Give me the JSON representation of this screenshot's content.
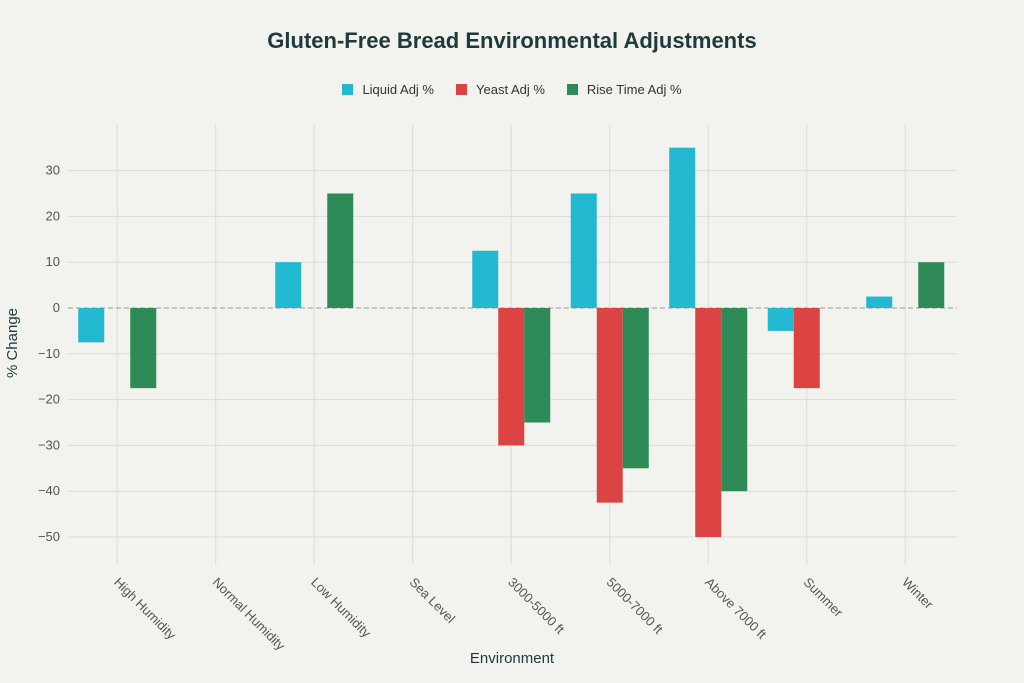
{
  "chart_data": {
    "type": "bar",
    "title": "Gluten-Free Bread Environmental Adjustments",
    "xlabel": "Environment",
    "ylabel": "% Change",
    "categories": [
      "High Humidity",
      "Normal Humidity",
      "Low Humidity",
      "Sea Level",
      "3000-5000 ft",
      "5000-7000 ft",
      "Above 7000 ft",
      "Summer",
      "Winter"
    ],
    "series": [
      {
        "name": "Liquid Adj %",
        "color": "#22b8cf",
        "values": [
          -7.5,
          0,
          10,
          0,
          12.5,
          25,
          35,
          -5,
          2.5
        ]
      },
      {
        "name": "Yeast Adj %",
        "color": "#dc4444",
        "values": [
          0,
          0,
          0,
          0,
          -30,
          -42.5,
          -50,
          -17.5,
          0
        ]
      },
      {
        "name": "Rise Time Adj %",
        "color": "#2e8b57",
        "values": [
          -17.5,
          0,
          25,
          0,
          -25,
          -35,
          -40,
          0,
          10
        ]
      }
    ],
    "y_ticks": [
      30,
      20,
      10,
      0,
      -10,
      -20,
      -30,
      -40,
      -50
    ],
    "ylim": [
      -55,
      40
    ],
    "grid": true,
    "legend_position": "top-center"
  }
}
